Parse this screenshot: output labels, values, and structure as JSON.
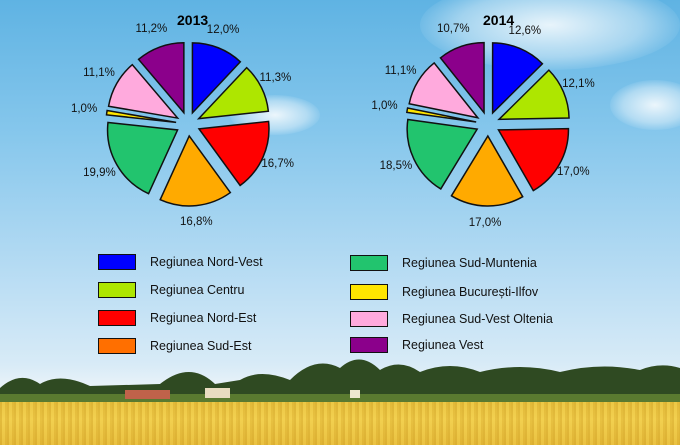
{
  "chart_data": [
    {
      "type": "pie",
      "title": "2013",
      "categories": [
        "Regiunea Nord-Vest",
        "Regiunea Centru",
        "Regiunea Nord-Est",
        "Regiunea Sud-Est",
        "Regiunea Sud-Muntenia",
        "Regiunea București-Ilfov",
        "Regiunea Sud-Vest Oltenia",
        "Regiunea Vest"
      ],
      "values": [
        12.0,
        11.3,
        16.7,
        16.8,
        19.9,
        1.0,
        11.1,
        11.2
      ],
      "labels": [
        "12,0%",
        "11,3%",
        "16,7%",
        "16,8%",
        "19,9%",
        "1,0%",
        "11,1%",
        "11,2%"
      ],
      "exploded": true
    },
    {
      "type": "pie",
      "title": "2014",
      "categories": [
        "Regiunea Nord-Vest",
        "Regiunea Centru",
        "Regiunea Nord-Est",
        "Regiunea Sud-Est",
        "Regiunea Sud-Muntenia",
        "Regiunea București-Ilfov",
        "Regiunea Sud-Vest Oltenia",
        "Regiunea Vest"
      ],
      "values": [
        12.6,
        12.1,
        17.0,
        17.0,
        18.5,
        1.0,
        11.1,
        10.7
      ],
      "labels": [
        "12,6%",
        "12,1%",
        "17,0%",
        "17,0%",
        "18,5%",
        "1,0%",
        "11,1%",
        "10,7%"
      ],
      "exploded": true
    }
  ],
  "charts": [
    {
      "title": "2013"
    },
    {
      "title": "2014"
    }
  ],
  "colors": {
    "nord_vest": "#0000ff",
    "centru": "#aee600",
    "nord_est": "#ff0000",
    "sud_est_slice": "#ffaa00",
    "sud_est_legend": "#ff6f00",
    "sud_muntenia": "#22c46e",
    "bucuresti_ilfov": "#ffe600",
    "sud_vest_oltenia": "#ffaadd",
    "vest": "#8b008b"
  },
  "legend": [
    {
      "label": "Regiunea Nord-Vest",
      "color": "#0000ff"
    },
    {
      "label": "Regiunea Centru",
      "color": "#aee600"
    },
    {
      "label": "Regiunea Nord-Est",
      "color": "#ff0000"
    },
    {
      "label": "Regiunea Sud-Est",
      "color": "#ff6f00"
    },
    {
      "label": "Regiunea Sud-Muntenia",
      "color": "#22c46e"
    },
    {
      "label": "Regiunea București-Ilfov",
      "color": "#ffe600"
    },
    {
      "label": "Regiunea Sud-Vest Oltenia",
      "color": "#ffaadd"
    },
    {
      "label": "Regiunea Vest",
      "color": "#8b008b"
    }
  ]
}
